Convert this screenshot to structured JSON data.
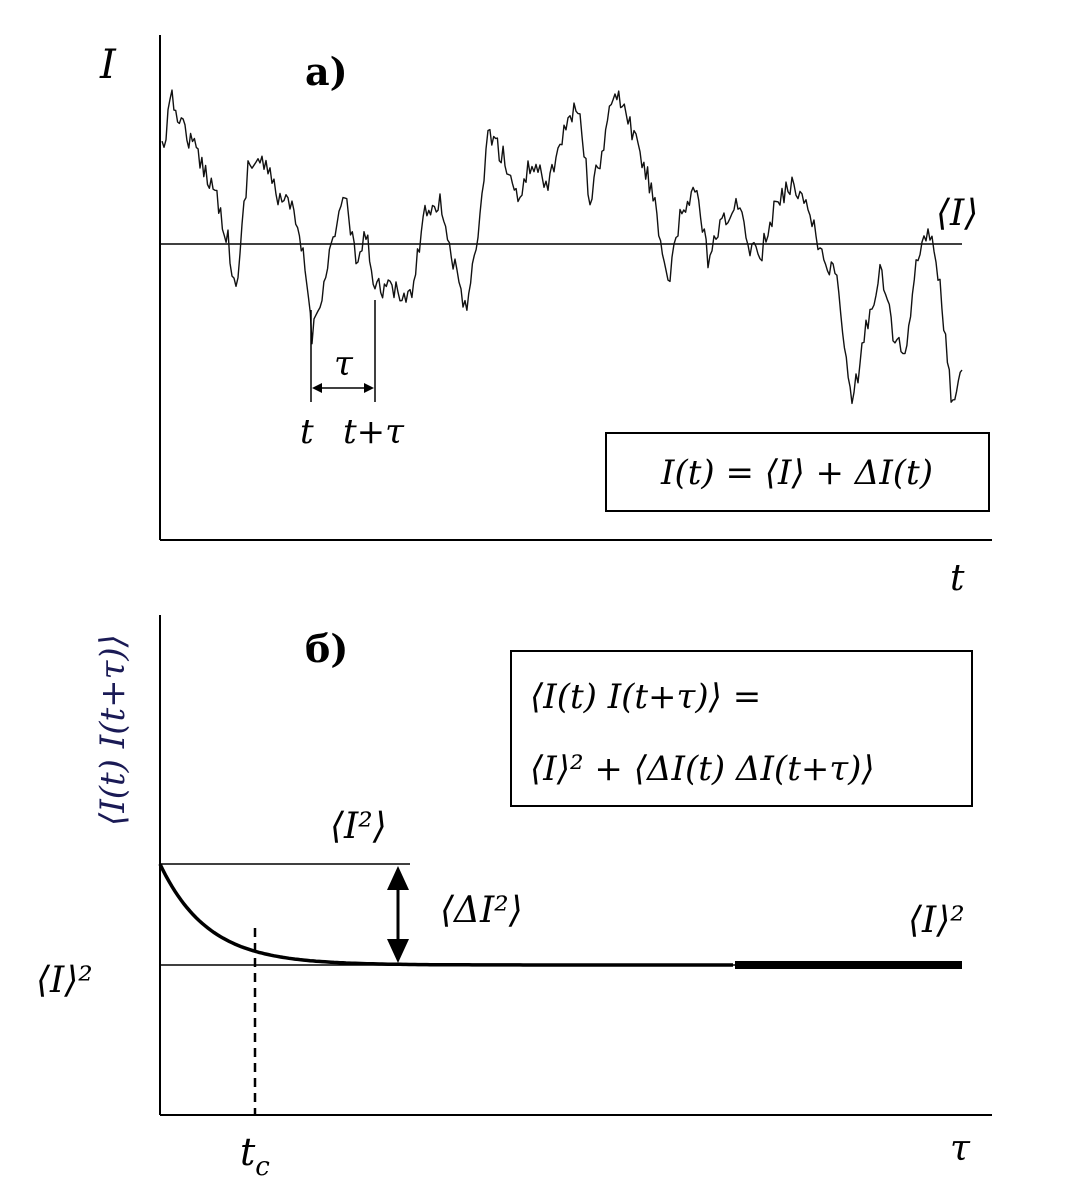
{
  "panel_a": {
    "label": "a)",
    "y_axis_label": "I",
    "x_axis_label": "t",
    "mean_label": "⟨I⟩",
    "tau_label": "τ",
    "t_label": "t",
    "t_plus_tau_label": "t+τ",
    "formula": "I(t) = ⟨I⟩ + ΔI(t)"
  },
  "panel_b": {
    "label": "б)",
    "y_axis_label": "⟨I(t) I(t+τ)⟩",
    "x_axis_label": "τ",
    "tc_label": "t",
    "tc_sub": "c",
    "formula_line1": "⟨I(t) I(t+τ)⟩ =",
    "formula_line2": "⟨I⟩² + ⟨ΔI(t) ΔI(t+τ)⟩",
    "mean_sq_label_left": "⟨I⟩²",
    "mean_sq_label_right": "⟨I⟩²",
    "i2_mean_label": "⟨I²⟩",
    "delta_i2_label": "⟨ΔI²⟩"
  }
}
